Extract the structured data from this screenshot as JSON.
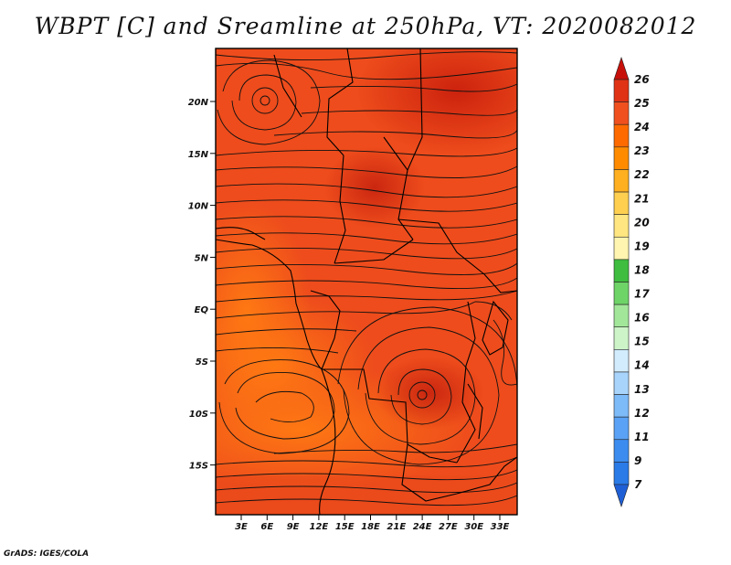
{
  "title": "WBPT [C] and Sreamline at 250hPa, VT: 2020082012",
  "credit": "GrADS: IGES/COLA",
  "map": {
    "lat_labels": [
      "20N",
      "15N",
      "10N",
      "5N",
      "EQ",
      "5S",
      "10S",
      "15S"
    ],
    "lon_labels": [
      "3E",
      "6E",
      "9E",
      "12E",
      "15E",
      "18E",
      "21E",
      "24E",
      "27E",
      "30E",
      "33E"
    ],
    "field_colors": {
      "low": "#ff6a00",
      "mid": "#f0501e",
      "high": "#d42a10"
    },
    "vortices": [
      {
        "name": "cyclone-sahara",
        "lon": 5.5,
        "lat": 20.0
      },
      {
        "name": "cyclone-south-central",
        "lon": 23.5,
        "lat": -8.5
      }
    ]
  },
  "colorbar": {
    "labels": [
      "7",
      "9",
      "11",
      "12",
      "13",
      "14",
      "15",
      "16",
      "17",
      "18",
      "19",
      "20",
      "21",
      "22",
      "23",
      "24",
      "25",
      "26"
    ],
    "colors": [
      "#1f5fd6",
      "#2a7ae8",
      "#3c8cf0",
      "#5aa2f5",
      "#7dbaf8",
      "#a8d4fb",
      "#d2ecfd",
      "#cdf4c8",
      "#a2e69a",
      "#6ed468",
      "#3fbd3f",
      "#fff5b0",
      "#ffe680",
      "#ffd050",
      "#ffb020",
      "#ff8c00",
      "#ff6a00",
      "#f0501e",
      "#e03214",
      "#c8100a"
    ]
  }
}
